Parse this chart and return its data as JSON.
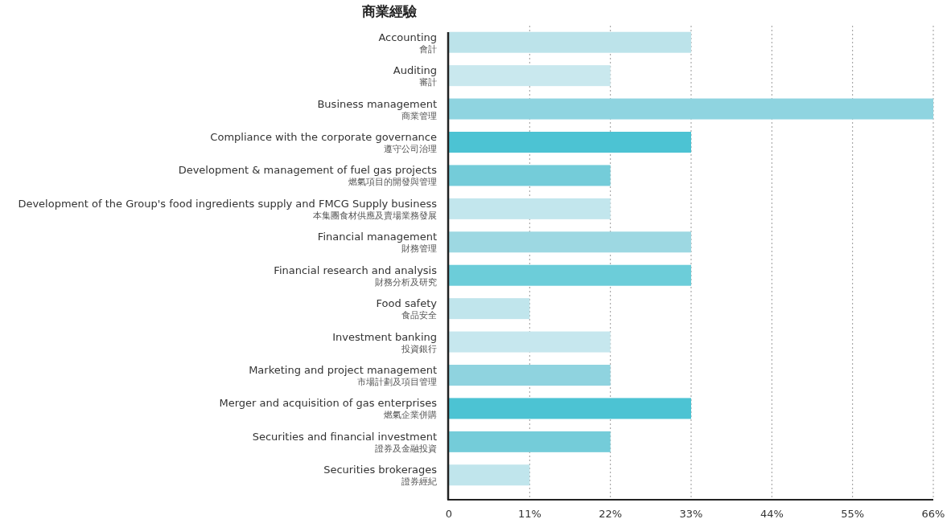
{
  "chart_data": {
    "type": "bar",
    "orientation": "horizontal",
    "title": "商業經驗",
    "categories": [
      "Accounting\n會計",
      "Auditing\n審計",
      "Business management\n商業管理",
      "Compliance with the corporate governance\n遵守公司治理",
      "Development & management of fuel gas projects\n燃氣項目的開發與管理",
      "Development of the Group's food ingredients supply and FMCG Supply business\n本集團食材供應及賣場業務發展",
      "Financial management\n財務管理",
      "Financial research and analysis\n財務分析及研究",
      "Food safety\n食品安全",
      "Investment banking\n投資銀行",
      "Marketing and project management\n市場計劃及項目管理",
      "Merger and acquisition of gas enterprises\n燃氣企業併購",
      "Securities and financial investment\n證券及金融投資",
      "Securities brokerages\n證券經紀"
    ],
    "values": [
      33,
      22,
      66,
      33,
      22,
      22,
      33,
      33,
      11,
      22,
      22,
      33,
      22,
      11
    ],
    "colors": [
      "#bce3ea",
      "#c9e8ee",
      "#8fd4e0",
      "#4cc3d3",
      "#74ccd9",
      "#c2e6ed",
      "#9dd8e2",
      "#6ccdd9",
      "#c0e5ec",
      "#c6e7ee",
      "#8fd3df",
      "#4cc3d3",
      "#74ccd9",
      "#c0e5ec"
    ],
    "xlim": [
      0,
      66
    ],
    "xticks": [
      0,
      {
        "value": 11,
        "label": "11%"
      },
      {
        "value": 22,
        "label": "22%"
      },
      {
        "value": 33,
        "label": "33%"
      },
      {
        "value": 44,
        "label": "44%"
      },
      {
        "value": 55,
        "label": "55%"
      },
      {
        "value": 66,
        "label": "66%"
      }
    ],
    "grid": "x"
  }
}
